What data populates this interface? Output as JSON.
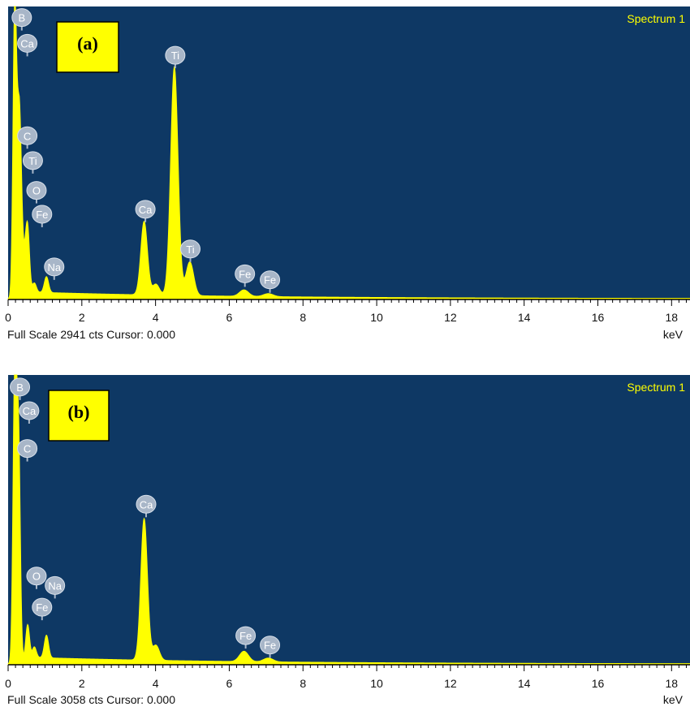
{
  "colors": {
    "plot_bg": "#0e3864",
    "spectrum": "#ffff00",
    "label_yellow": "#ffff00",
    "peak_label_bg": "#a8b6c8"
  },
  "chart_data": [
    {
      "type": "line",
      "panel_label": "(a)",
      "title": "Spectrum 1",
      "xlabel": "keV",
      "footer": "Full Scale 2941 cts Cursor: 0.000",
      "xlim": [
        0,
        18.5
      ],
      "ylim": [
        0,
        2941
      ],
      "x_ticks": [
        "0",
        "2",
        "4",
        "6",
        "8",
        "10",
        "12",
        "14",
        "16",
        "18"
      ],
      "grid": false,
      "peaks": [
        {
          "element": "B",
          "energy": 0.18,
          "counts": 2941
        },
        {
          "element": "C",
          "energy": 0.28,
          "counts": 1300
        },
        {
          "element": "Ca",
          "energy": 0.34,
          "counts": 1000
        },
        {
          "element": "O",
          "energy": 0.53,
          "counts": 640
        },
        {
          "element": "Ti",
          "energy": 0.45,
          "counts": 280
        },
        {
          "element": "Fe",
          "energy": 0.71,
          "counts": 100
        },
        {
          "element": "Na",
          "energy": 1.04,
          "counts": 160
        },
        {
          "element": "Ca",
          "energy": 3.69,
          "counts": 740
        },
        {
          "element": "Ca",
          "energy": 4.01,
          "counts": 110
        },
        {
          "element": "Ti",
          "energy": 4.51,
          "counts": 2300
        },
        {
          "element": "Ti",
          "energy": 4.93,
          "counts": 340
        },
        {
          "element": "Fe",
          "energy": 6.4,
          "counts": 65
        },
        {
          "element": "Fe",
          "energy": 7.06,
          "counts": 30
        }
      ],
      "peak_labels": [
        {
          "text": "B",
          "energy": 0.15,
          "counts": 2830
        },
        {
          "text": "Ca",
          "energy": 0.3,
          "counts": 2570
        },
        {
          "text": "Ti",
          "energy": 4.49,
          "counts": 2450
        },
        {
          "text": "C",
          "energy": 0.3,
          "counts": 1640
        },
        {
          "text": "Ti",
          "energy": 0.45,
          "counts": 1390
        },
        {
          "text": "O",
          "energy": 0.55,
          "counts": 1090
        },
        {
          "text": "Fe",
          "energy": 0.7,
          "counts": 850
        },
        {
          "text": "Ca",
          "energy": 3.68,
          "counts": 900
        },
        {
          "text": "Ti",
          "energy": 4.9,
          "counts": 500
        },
        {
          "text": "Na",
          "energy": 1.03,
          "counts": 320
        },
        {
          "text": "Fe",
          "energy": 6.38,
          "counts": 250
        },
        {
          "text": "Fe",
          "energy": 7.06,
          "counts": 190
        }
      ]
    },
    {
      "type": "line",
      "panel_label": "(b)",
      "title": "Spectrum 1",
      "xlabel": "keV",
      "footer": "Full Scale 3058 cts Cursor: 0.000",
      "xlim": [
        0,
        18.5
      ],
      "ylim": [
        0,
        3058
      ],
      "x_ticks": [
        "0",
        "2",
        "4",
        "6",
        "8",
        "10",
        "12",
        "14",
        "16",
        "18"
      ],
      "grid": false,
      "peaks": [
        {
          "element": "B",
          "energy": 0.18,
          "counts": 3058
        },
        {
          "element": "C",
          "energy": 0.28,
          "counts": 2400
        },
        {
          "element": "O",
          "energy": 0.53,
          "counts": 370
        },
        {
          "element": "Fe",
          "energy": 0.71,
          "counts": 120
        },
        {
          "element": "Na",
          "energy": 1.04,
          "counts": 240
        },
        {
          "element": "Ca",
          "energy": 3.69,
          "counts": 1500
        },
        {
          "element": "Ca",
          "energy": 4.01,
          "counts": 160
        },
        {
          "element": "Fe",
          "energy": 6.4,
          "counts": 110
        },
        {
          "element": "Fe",
          "energy": 7.06,
          "counts": 40
        }
      ],
      "peak_labels": [
        {
          "text": "B",
          "energy": 0.1,
          "counts": 2930
        },
        {
          "text": "Ca",
          "energy": 0.35,
          "counts": 2680
        },
        {
          "text": "C",
          "energy": 0.3,
          "counts": 2280
        },
        {
          "text": "Ca",
          "energy": 3.7,
          "counts": 1690
        },
        {
          "text": "O",
          "energy": 0.55,
          "counts": 930
        },
        {
          "text": "Na",
          "energy": 1.05,
          "counts": 830
        },
        {
          "text": "Fe",
          "energy": 0.7,
          "counts": 600
        },
        {
          "text": "Fe",
          "energy": 6.4,
          "counts": 300
        },
        {
          "text": "Fe",
          "energy": 7.06,
          "counts": 200
        }
      ]
    }
  ]
}
